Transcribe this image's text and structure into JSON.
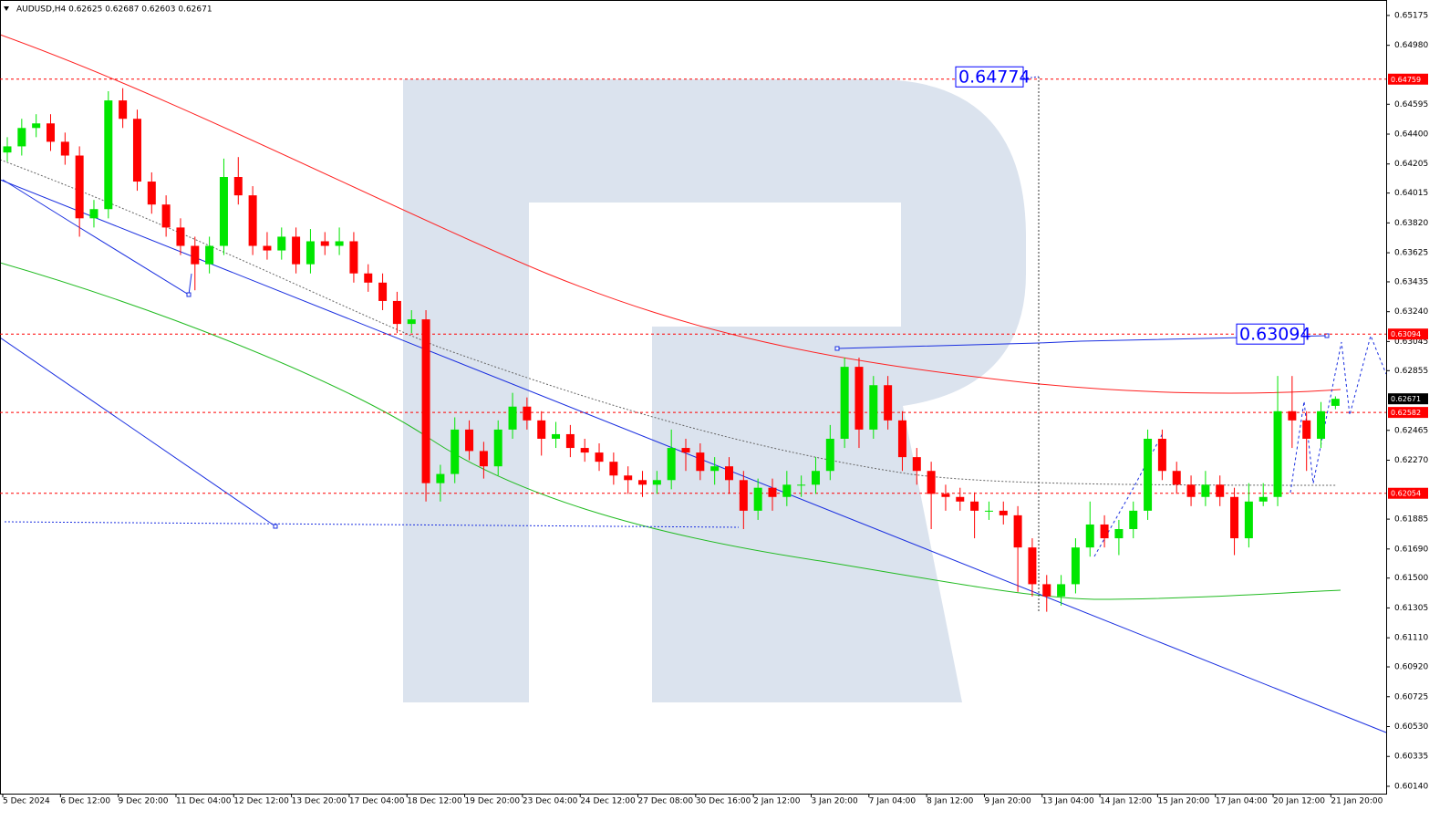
{
  "chart_data": {
    "type": "candlestick",
    "title": "AUDUSD,H4  0.62625 0.62687 0.62603 0.62671",
    "categories": [
      "5 Dec 2024",
      null,
      null,
      null,
      "6 Dec 12:00",
      null,
      null,
      null,
      "9 Dec 20:00",
      null,
      null,
      null,
      "11 Dec 04:00",
      null,
      null,
      null,
      "12 Dec 12:00",
      null,
      null,
      null,
      "13 Dec 20:00",
      null,
      null,
      null,
      "17 Dec 04:00",
      null,
      null,
      null,
      "18 Dec 12:00",
      null,
      null,
      null,
      "19 Dec 20:00",
      null,
      null,
      null,
      "23 Dec 04:00",
      null,
      null,
      null,
      "24 Dec 12:00",
      null,
      null,
      null,
      "27 Dec 08:00",
      null,
      null,
      null,
      "30 Dec 16:00",
      null,
      null,
      null,
      "2 Jan 12:00",
      null,
      null,
      null,
      "3 Jan 20:00",
      null,
      null,
      null,
      "7 Jan 04:00",
      null,
      null,
      null,
      "8 Jan 12:00",
      null,
      null,
      null,
      "9 Jan 20:00",
      null,
      null,
      null,
      "13 Jan 04:00",
      null,
      null,
      null,
      "14 Jan 12:00",
      null,
      null,
      null,
      "15 Jan 20:00",
      null,
      null,
      null,
      "17 Jan 04:00",
      null,
      null,
      null,
      "20 Jan 12:00",
      null,
      null,
      null,
      "21 Jan 20:00"
    ],
    "open": [
      0.6428,
      0.6432,
      0.6444,
      0.6447,
      0.6435,
      0.6426,
      0.6385,
      0.6391,
      0.6462,
      0.645,
      0.6409,
      0.6394,
      0.6379,
      0.6367,
      0.6355,
      0.6367,
      0.6412,
      0.64,
      0.6367,
      0.6364,
      0.6373,
      0.6355,
      0.637,
      0.6367,
      0.637,
      0.6349,
      0.6343,
      0.6331,
      0.6316,
      0.6319,
      0.6212,
      0.6218,
      0.6247,
      0.6233,
      0.6223,
      0.6247,
      0.6262,
      0.6253,
      0.6241,
      0.6244,
      0.6235,
      0.6232,
      0.6226,
      0.6217,
      0.6214,
      0.6211,
      0.6214,
      0.6235,
      0.6232,
      0.622,
      0.6223,
      0.6214,
      0.6194,
      0.6209,
      0.6203,
      0.6211,
      0.6211,
      0.622,
      0.6241,
      0.6288,
      0.6247,
      0.6276,
      0.6253,
      0.6229,
      0.622,
      0.6205,
      0.6203,
      0.62,
      0.6194,
      0.6194,
      0.6191,
      0.617,
      0.6146,
      0.6138,
      0.6146,
      0.617,
      0.6185,
      0.6176,
      0.6182,
      0.6194,
      0.6241,
      0.622,
      0.6211,
      0.6203,
      0.6211,
      0.6203,
      0.6176,
      0.62,
      0.6203,
      0.6259,
      0.6253,
      0.6241,
      0.62625
    ],
    "high": [
      0.6438,
      0.645,
      0.6453,
      0.6453,
      0.6441,
      0.6432,
      0.6397,
      0.6468,
      0.647,
      0.6456,
      0.6415,
      0.64,
      0.6385,
      0.6373,
      0.6373,
      0.6424,
      0.6425,
      0.6406,
      0.6376,
      0.6379,
      0.6379,
      0.6378,
      0.6376,
      0.6379,
      0.6376,
      0.6355,
      0.6349,
      0.6337,
      0.6325,
      0.6325,
      0.6224,
      0.6255,
      0.6253,
      0.6239,
      0.6253,
      0.6271,
      0.6268,
      0.6259,
      0.6252,
      0.625,
      0.6241,
      0.6238,
      0.6232,
      0.6223,
      0.622,
      0.622,
      0.6247,
      0.6241,
      0.6238,
      0.6229,
      0.6229,
      0.622,
      0.6215,
      0.6215,
      0.622,
      0.6217,
      0.6229,
      0.625,
      0.6294,
      0.6294,
      0.6282,
      0.6282,
      0.6259,
      0.6235,
      0.6226,
      0.6211,
      0.6209,
      0.6206,
      0.62,
      0.62,
      0.6197,
      0.6176,
      0.6152,
      0.6152,
      0.6176,
      0.62,
      0.6191,
      0.6188,
      0.62,
      0.6247,
      0.6247,
      0.6226,
      0.6217,
      0.622,
      0.6217,
      0.6209,
      0.6212,
      0.6212,
      0.6282,
      0.6282,
      0.6259,
      0.6265,
      0.62687
    ],
    "low": [
      0.6422,
      0.6426,
      0.6438,
      0.6429,
      0.642,
      0.6373,
      0.6379,
      0.6385,
      0.6444,
      0.6403,
      0.6388,
      0.6373,
      0.6361,
      0.6338,
      0.6349,
      0.6361,
      0.6394,
      0.6361,
      0.6358,
      0.6358,
      0.6349,
      0.6349,
      0.6361,
      0.6361,
      0.6343,
      0.6337,
      0.6325,
      0.631,
      0.631,
      0.62,
      0.62,
      0.6212,
      0.6227,
      0.6215,
      0.6217,
      0.6241,
      0.6247,
      0.623,
      0.6235,
      0.6229,
      0.6226,
      0.622,
      0.6211,
      0.6205,
      0.6203,
      0.6205,
      0.6208,
      0.622,
      0.6214,
      0.6211,
      0.6205,
      0.6182,
      0.6188,
      0.6194,
      0.6197,
      0.6203,
      0.6205,
      0.6214,
      0.6235,
      0.6235,
      0.6241,
      0.6247,
      0.622,
      0.6211,
      0.6182,
      0.6194,
      0.6194,
      0.6176,
      0.6188,
      0.6185,
      0.6141,
      0.6138,
      0.6128,
      0.6132,
      0.614,
      0.6164,
      0.617,
      0.6165,
      0.6176,
      0.6188,
      0.6214,
      0.6205,
      0.6197,
      0.6197,
      0.6197,
      0.6165,
      0.617,
      0.6197,
      0.6197,
      0.6235,
      0.622,
      0.6235,
      0.62603
    ],
    "close": [
      0.6432,
      0.6444,
      0.6447,
      0.6435,
      0.6426,
      0.6385,
      0.6391,
      0.6462,
      0.645,
      0.6409,
      0.6394,
      0.6379,
      0.6367,
      0.6355,
      0.6367,
      0.6412,
      0.64,
      0.6367,
      0.6364,
      0.6373,
      0.6355,
      0.637,
      0.6367,
      0.637,
      0.6349,
      0.6343,
      0.6331,
      0.6316,
      0.6319,
      0.6212,
      0.6218,
      0.6247,
      0.6233,
      0.6223,
      0.6247,
      0.6262,
      0.6253,
      0.6241,
      0.6244,
      0.6235,
      0.6232,
      0.6226,
      0.6217,
      0.6214,
      0.6211,
      0.6214,
      0.6235,
      0.6232,
      0.622,
      0.6223,
      0.6214,
      0.6194,
      0.6209,
      0.6203,
      0.6211,
      0.6211,
      0.622,
      0.6241,
      0.6288,
      0.6247,
      0.6276,
      0.6253,
      0.6229,
      0.622,
      0.6205,
      0.6203,
      0.62,
      0.6194,
      0.6194,
      0.6191,
      0.617,
      0.6146,
      0.6138,
      0.6146,
      0.617,
      0.6185,
      0.6176,
      0.6182,
      0.6194,
      0.6241,
      0.622,
      0.6211,
      0.6203,
      0.6211,
      0.6203,
      0.6176,
      0.62,
      0.6203,
      0.6259,
      0.6253,
      0.6241,
      0.6259,
      0.62671
    ],
    "up_color": "#00e600",
    "down_color": "#ff0000",
    "ylim": [
      0.60092,
      0.65276
    ],
    "yticks": [
      {
        "value": 0.65175,
        "label": "0.65175"
      },
      {
        "value": 0.6498,
        "label": "0.64980"
      },
      {
        "value": 0.64595,
        "label": "0.64595"
      },
      {
        "value": 0.644,
        "label": "0.64400"
      },
      {
        "value": 0.64205,
        "label": "0.64205"
      },
      {
        "value": 0.64015,
        "label": "0.64015"
      },
      {
        "value": 0.6382,
        "label": "0.63820"
      },
      {
        "value": 0.63625,
        "label": "0.63625"
      },
      {
        "value": 0.63435,
        "label": "0.63435"
      },
      {
        "value": 0.6324,
        "label": "0.63240"
      },
      {
        "value": 0.63045,
        "label": "0.63045"
      },
      {
        "value": 0.62855,
        "label": "0.62855"
      },
      {
        "value": 0.62465,
        "label": "0.62465"
      },
      {
        "value": 0.6227,
        "label": "0.62270"
      },
      {
        "value": 0.61885,
        "label": "0.61885"
      },
      {
        "value": 0.6169,
        "label": "0.61690"
      },
      {
        "value": 0.615,
        "label": "0.61500"
      },
      {
        "value": 0.61305,
        "label": "0.61305"
      },
      {
        "value": 0.6111,
        "label": "0.61110"
      },
      {
        "value": 0.6092,
        "label": "0.60920"
      },
      {
        "value": 0.60725,
        "label": "0.60725"
      },
      {
        "value": 0.6053,
        "label": "0.60530"
      },
      {
        "value": 0.60335,
        "label": "0.60335"
      },
      {
        "value": 0.6014,
        "label": "0.60140"
      }
    ],
    "grid": false,
    "price_tags": [
      {
        "value": 0.64759,
        "color": "#ff0000",
        "dashed": true
      },
      {
        "value": 0.63094,
        "color": "#ff0000",
        "dashed": true
      },
      {
        "value": 0.62671,
        "color": "#000000",
        "dashed": false
      },
      {
        "value": 0.62582,
        "color": "#ff0000",
        "dashed": true
      },
      {
        "value": 0.62054,
        "color": "#ff0000",
        "dashed": true
      }
    ],
    "annotations": [
      0.64774,
      0.63094
    ]
  }
}
